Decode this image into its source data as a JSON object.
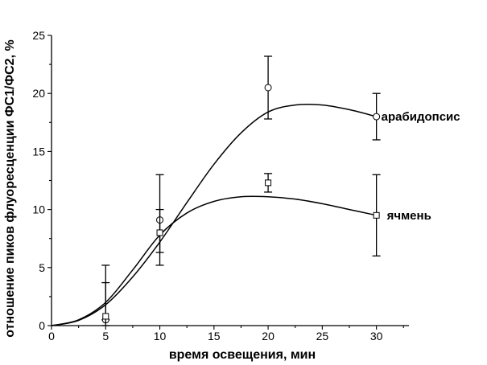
{
  "chart_data": {
    "type": "scatter",
    "title": "",
    "xlabel": "время освещения, мин",
    "ylabel": "отношение пиков флуоресценции ФС1/ФС2, %",
    "xlim": [
      0,
      33
    ],
    "ylim": [
      0,
      25
    ],
    "x_ticks": [
      0,
      5,
      10,
      15,
      20,
      25,
      30
    ],
    "y_ticks": [
      0,
      5,
      10,
      15,
      20,
      25
    ],
    "grid": false,
    "legend": "inline labels at right end of each curve",
    "series": [
      {
        "name": "арабидопсис",
        "marker": "circle",
        "color": "#000000",
        "x": [
          5,
          10,
          20,
          30
        ],
        "y": [
          0.5,
          9.1,
          20.5,
          18.0
        ],
        "err_low": [
          0.5,
          6.3,
          17.8,
          16.0
        ],
        "err_high": [
          3.7,
          13.0,
          23.2,
          20.0
        ],
        "fit_curve": {
          "x": [
            0,
            2.5,
            5,
            7.5,
            10,
            12.5,
            15,
            17.5,
            20,
            22.5,
            25,
            27.5,
            30
          ],
          "y": [
            0,
            0.45,
            1.8,
            4.2,
            7.2,
            10.6,
            13.9,
            16.6,
            18.4,
            19.0,
            19.0,
            18.6,
            18.0
          ]
        }
      },
      {
        "name": "ячмень",
        "marker": "square",
        "color": "#000000",
        "x": [
          5,
          10,
          20,
          30
        ],
        "y": [
          0.8,
          8.0,
          12.3,
          9.5
        ],
        "err_low": [
          0.0,
          5.2,
          11.5,
          6.0
        ],
        "err_high": [
          5.2,
          10.0,
          13.1,
          13.0
        ],
        "fit_curve": {
          "x": [
            0,
            2.5,
            5,
            7.5,
            10,
            12.5,
            15,
            17.5,
            20,
            22.5,
            25,
            27.5,
            30
          ],
          "y": [
            0,
            0.5,
            2.0,
            4.8,
            7.8,
            9.7,
            10.7,
            11.1,
            11.1,
            10.9,
            10.5,
            10.0,
            9.5
          ]
        }
      }
    ]
  }
}
